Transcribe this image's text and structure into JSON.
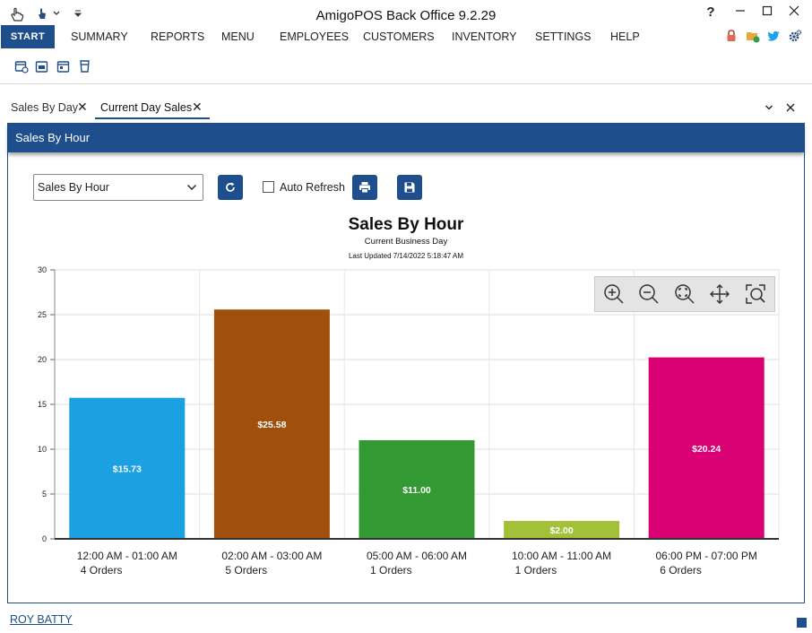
{
  "window": {
    "title": "AmigoPOS Back Office 9.2.29"
  },
  "menu": {
    "start_label": "START",
    "items": [
      "SUMMARY",
      "REPORTS",
      "MENU",
      "EMPLOYEES",
      "CUSTOMERS",
      "INVENTORY",
      "SETTINGS",
      "HELP"
    ]
  },
  "tabs": [
    {
      "label": "Sales By Day",
      "active": false
    },
    {
      "label": "Current Day Sales",
      "active": true
    }
  ],
  "panel": {
    "title": "Sales By Hour"
  },
  "controls": {
    "report_select": "Sales By Hour",
    "auto_refresh_label": "Auto Refresh",
    "auto_refresh_checked": false
  },
  "chart_data": {
    "type": "bar",
    "title": "Sales By Hour",
    "subtitle": "Current Business Day",
    "updated": "Last Updated 7/14/2022 5:18:47 AM",
    "categories": [
      "12:00 AM - 01:00 AM",
      "02:00 AM - 03:00 AM",
      "05:00 AM - 06:00 AM",
      "10:00 AM - 11:00 AM",
      "06:00 PM - 07:00 PM"
    ],
    "orders": [
      "4 Orders",
      "5 Orders",
      "1 Orders",
      "1 Orders",
      "6 Orders"
    ],
    "values": [
      15.73,
      25.58,
      11.0,
      2.0,
      20.24
    ],
    "data_labels": [
      "$15.73",
      "$25.58",
      "$11.00",
      "$2.00",
      "$20.24"
    ],
    "colors": [
      "#1ba1e2",
      "#a0500c",
      "#339933",
      "#a2c139",
      "#d80073"
    ],
    "yticks": [
      0,
      5,
      10,
      15,
      20,
      25,
      30
    ],
    "ylim": [
      0,
      30
    ],
    "grid": true
  },
  "footer": {
    "user": "ROY BATTY"
  },
  "colors": {
    "accent": "#1f4e8c"
  }
}
